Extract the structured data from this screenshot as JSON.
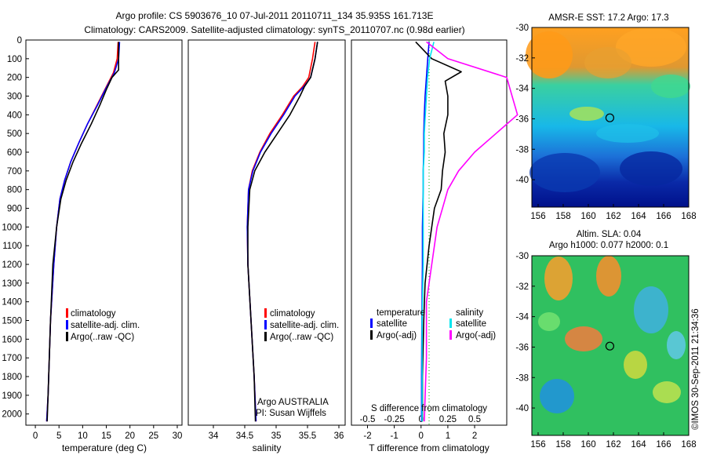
{
  "title_line1": "Argo profile: CS 5903676_10 07-Jul-2011 20110711_134 35.935S 161.713E",
  "title_line2": "Climatology: CARS2009. Satellite-adjusted climatology: synTS_20110707.nc (0.98d earlier)",
  "watermark": "©IMOS 30-Sep-2011 21:34:36",
  "colors": {
    "climatology": "#ff0000",
    "satellite": "#0000ff",
    "argo": "#000000",
    "sal_satellite": "#00e5ee",
    "sal_argo": "#ff00ff"
  },
  "chart_data": [
    {
      "type": "line",
      "id": "temperature",
      "xlabel": "temperature (deg C)",
      "xlim": [
        -2,
        31
      ],
      "ylim": [
        2060,
        0
      ],
      "xticks": [
        0,
        5,
        10,
        15,
        20,
        25,
        30
      ],
      "yticks": [
        0,
        100,
        200,
        300,
        400,
        500,
        600,
        700,
        800,
        900,
        1000,
        1100,
        1200,
        1300,
        1400,
        1500,
        1600,
        1700,
        1800,
        1900,
        2000
      ],
      "legend": [
        "climatology",
        "satellite-adj. clim.",
        "Argo(..raw -QC)"
      ],
      "series": [
        {
          "name": "climatology",
          "color": "#ff0000",
          "x": [
            17.5,
            17.3,
            16.5,
            15.0,
            13.0,
            11.0,
            9.2,
            7.5,
            6.2,
            5.2,
            4.5,
            3.9,
            3.2,
            2.7,
            2.4
          ],
          "y": [
            10,
            100,
            175,
            250,
            350,
            450,
            550,
            650,
            750,
            850,
            1000,
            1200,
            1500,
            1900,
            2040
          ]
        },
        {
          "name": "satellite-adj. clim.",
          "color": "#0000ff",
          "x": [
            17.8,
            17.6,
            16.7,
            15.1,
            13.1,
            11.0,
            9.2,
            7.5,
            6.2,
            5.2,
            4.5,
            3.9,
            3.2,
            2.7,
            2.4
          ],
          "y": [
            10,
            100,
            175,
            250,
            350,
            450,
            550,
            650,
            750,
            850,
            1000,
            1200,
            1500,
            1900,
            2040
          ]
        },
        {
          "name": "Argo(..raw -QC)",
          "color": "#000000",
          "x": [
            17.6,
            17.6,
            17.6,
            16.2,
            15.1,
            13.6,
            11.8,
            9.8,
            8.0,
            6.5,
            5.4,
            4.5,
            3.7,
            3.2,
            2.7,
            2.5
          ],
          "y": [
            10,
            100,
            160,
            200,
            260,
            350,
            450,
            550,
            650,
            750,
            850,
            1000,
            1200,
            1500,
            1900,
            2040
          ]
        }
      ]
    },
    {
      "type": "line",
      "id": "salinity",
      "xlabel": "salinity",
      "xlim": [
        33.6,
        36.1
      ],
      "ylim": [
        2060,
        0
      ],
      "xticks": [
        34,
        34.5,
        35,
        35.5,
        36
      ],
      "legend": [
        "climatology",
        "satellite-adj. clim.",
        "Argo(..raw -QC)"
      ],
      "annotation": [
        "Argo AUSTRALIA",
        "PI: Susan Wijffels"
      ],
      "series": [
        {
          "name": "climatology",
          "color": "#ff0000",
          "x": [
            35.62,
            35.58,
            35.52,
            35.42,
            35.28,
            35.1,
            34.9,
            34.74,
            34.62,
            34.56,
            34.54,
            34.55,
            34.6,
            34.65,
            34.68
          ],
          "y": [
            10,
            100,
            200,
            250,
            300,
            400,
            500,
            600,
            700,
            800,
            1000,
            1200,
            1500,
            1800,
            2040
          ]
        },
        {
          "name": "satellite-adj. clim.",
          "color": "#0000ff",
          "x": [
            35.66,
            35.62,
            35.55,
            35.44,
            35.3,
            35.12,
            34.92,
            34.75,
            34.63,
            34.56,
            34.54,
            34.55,
            34.6,
            34.65,
            34.68
          ],
          "y": [
            10,
            100,
            200,
            250,
            300,
            400,
            500,
            600,
            700,
            800,
            1000,
            1200,
            1500,
            1800,
            2040
          ]
        },
        {
          "name": "Argo(..raw -QC)",
          "color": "#000000",
          "x": [
            35.66,
            35.62,
            35.55,
            35.45,
            35.38,
            35.22,
            35.02,
            34.82,
            34.66,
            34.58,
            34.55,
            34.55,
            34.6,
            34.65,
            34.67
          ],
          "y": [
            10,
            100,
            200,
            250,
            300,
            400,
            500,
            600,
            700,
            800,
            1000,
            1200,
            1500,
            1800,
            2040
          ]
        }
      ]
    },
    {
      "type": "line",
      "id": "difference",
      "xlabel": "T difference from climatology",
      "xlabel2": "S difference from climatology",
      "xlim": [
        -2.6,
        3.2
      ],
      "ylim": [
        2060,
        0
      ],
      "xticks_T": [
        -2,
        -1,
        0,
        1,
        2
      ],
      "xticks_S": [
        "-0.5",
        "-0.25",
        "0",
        "0.25",
        "0.5"
      ],
      "legend_temperature_title": "temperature",
      "legend_salinity_title": "salinity",
      "legend": [
        "satellite",
        "Argo(-adj)",
        "satellite",
        "Argo(-adj)"
      ],
      "series": [
        {
          "name": "satellite",
          "group": "temperature",
          "color": "#0000ff",
          "x": [
            0.3,
            0.25,
            0.2,
            0.15,
            0.12,
            0.1,
            0.1,
            0.08,
            0.08,
            0.05,
            0.05,
            0.03,
            0.02,
            0.02
          ],
          "y": [
            10,
            100,
            200,
            300,
            400,
            500,
            600,
            700,
            800,
            1000,
            1200,
            1500,
            1800,
            2040
          ]
        },
        {
          "name": "Argo(-adj)",
          "group": "temperature",
          "color": "#000000",
          "x": [
            -0.2,
            0.4,
            1.5,
            0.9,
            1.0,
            1.0,
            0.85,
            0.9,
            0.8,
            0.75,
            0.5,
            0.4,
            0.3,
            0.15,
            0.1,
            0.05,
            0.05
          ],
          "y": [
            10,
            100,
            170,
            220,
            300,
            400,
            500,
            600,
            700,
            800,
            900,
            1000,
            1100,
            1300,
            1500,
            1800,
            2040
          ]
        },
        {
          "name": "satellite",
          "group": "salinity",
          "color": "#00e5ee",
          "x": [
            0.12,
            0.08,
            0.06,
            0.05,
            0.04,
            0.03,
            0.03,
            0.02,
            0.02,
            0.02,
            0.02,
            0.01,
            0.01,
            0.01
          ],
          "y": [
            10,
            100,
            200,
            300,
            400,
            500,
            600,
            700,
            800,
            1000,
            1200,
            1500,
            1800,
            2040
          ]
        },
        {
          "name": "Argo(-adj)",
          "group": "salinity",
          "color": "#ff00ff",
          "x": [
            0.05,
            0.25,
            0.8,
            0.85,
            0.9,
            0.7,
            0.5,
            0.35,
            0.25,
            0.2,
            0.15,
            0.1,
            0.05,
            0.05,
            0.03
          ],
          "y": [
            10,
            100,
            200,
            300,
            400,
            500,
            600,
            700,
            800,
            900,
            1000,
            1200,
            1400,
            1700,
            2040
          ]
        }
      ]
    },
    {
      "type": "heatmap",
      "id": "sst_map",
      "title": "AMSR-E SST: 17.2 Argo: 17.3",
      "xlim": [
        155.5,
        168
      ],
      "ylim": [
        -41.8,
        -30
      ],
      "xticks": [
        156,
        158,
        160,
        162,
        164,
        166,
        168
      ],
      "yticks": [
        -30,
        -32,
        -34,
        -36,
        -38,
        -40
      ],
      "marker": {
        "lon": 161.713,
        "lat": -35.935
      }
    },
    {
      "type": "heatmap",
      "id": "sla_map",
      "title": "Altim. SLA: 0.04",
      "title2": "Argo h1000: 0.077 h2000: 0.1",
      "xlim": [
        155.5,
        168
      ],
      "ylim": [
        -41.8,
        -30
      ],
      "xticks": [
        156,
        158,
        160,
        162,
        164,
        166,
        168
      ],
      "yticks": [
        -30,
        -32,
        -34,
        -36,
        -38,
        -40
      ],
      "marker": {
        "lon": 161.713,
        "lat": -35.935
      }
    }
  ]
}
